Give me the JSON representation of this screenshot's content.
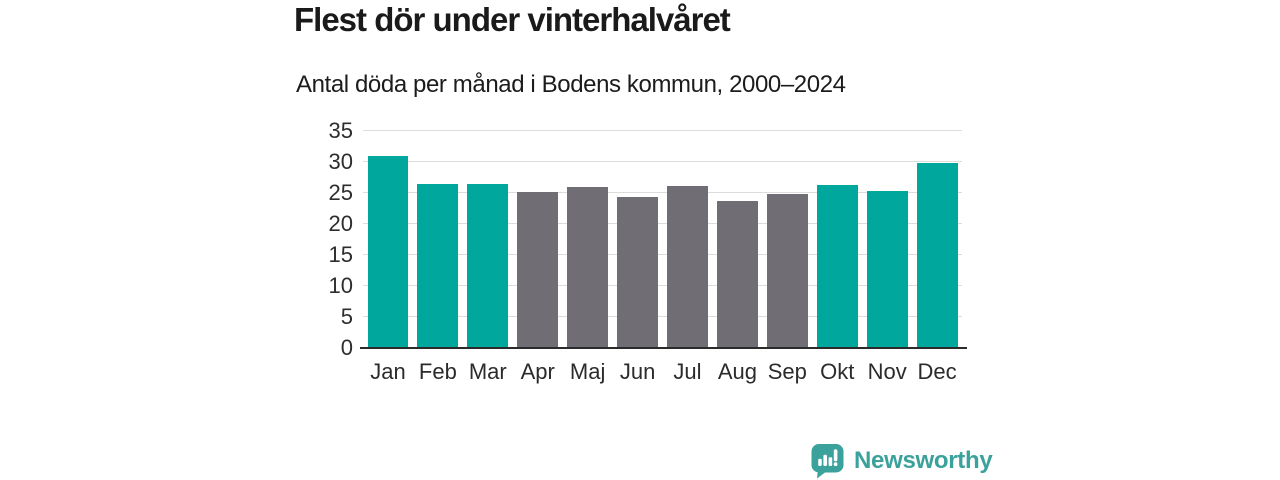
{
  "header": {
    "title": "Flest dör under vinterhalvåret",
    "subtitle": "Antal döda per månad i Bodens kommun, 2000–2024"
  },
  "chart_data": {
    "type": "bar",
    "title": "Flest dör under vinterhalvåret",
    "subtitle": "Antal döda per månad i Bodens kommun, 2000–2024",
    "categories": [
      "Jan",
      "Feb",
      "Mar",
      "Apr",
      "Maj",
      "Jun",
      "Jul",
      "Aug",
      "Sep",
      "Okt",
      "Nov",
      "Dec"
    ],
    "values": [
      31.0,
      26.5,
      26.5,
      25.1,
      26.0,
      24.4,
      26.2,
      23.7,
      24.9,
      26.3,
      25.4,
      29.8
    ],
    "bar_colors": [
      "teal",
      "teal",
      "teal",
      "gray",
      "gray",
      "gray",
      "gray",
      "gray",
      "gray",
      "teal",
      "teal",
      "teal"
    ],
    "xlabel": "",
    "ylabel": "",
    "ylim": [
      0,
      35
    ],
    "yticks": [
      0,
      5,
      10,
      15,
      20,
      25,
      30,
      35
    ],
    "grid": true,
    "legend_position": "none"
  },
  "colors": {
    "teal": "#00a79c",
    "gray": "#706d75",
    "logo_teal": "#3aa19b",
    "gridline": "#dcdcdc",
    "axis_line": "#2b2b2b",
    "title_text": "#1a1a1a",
    "axis_text": "#2d2d2d"
  },
  "footer": {
    "brand": "Newsworthy",
    "logo_icon": "bar-chart-speech-bubble-icon"
  }
}
